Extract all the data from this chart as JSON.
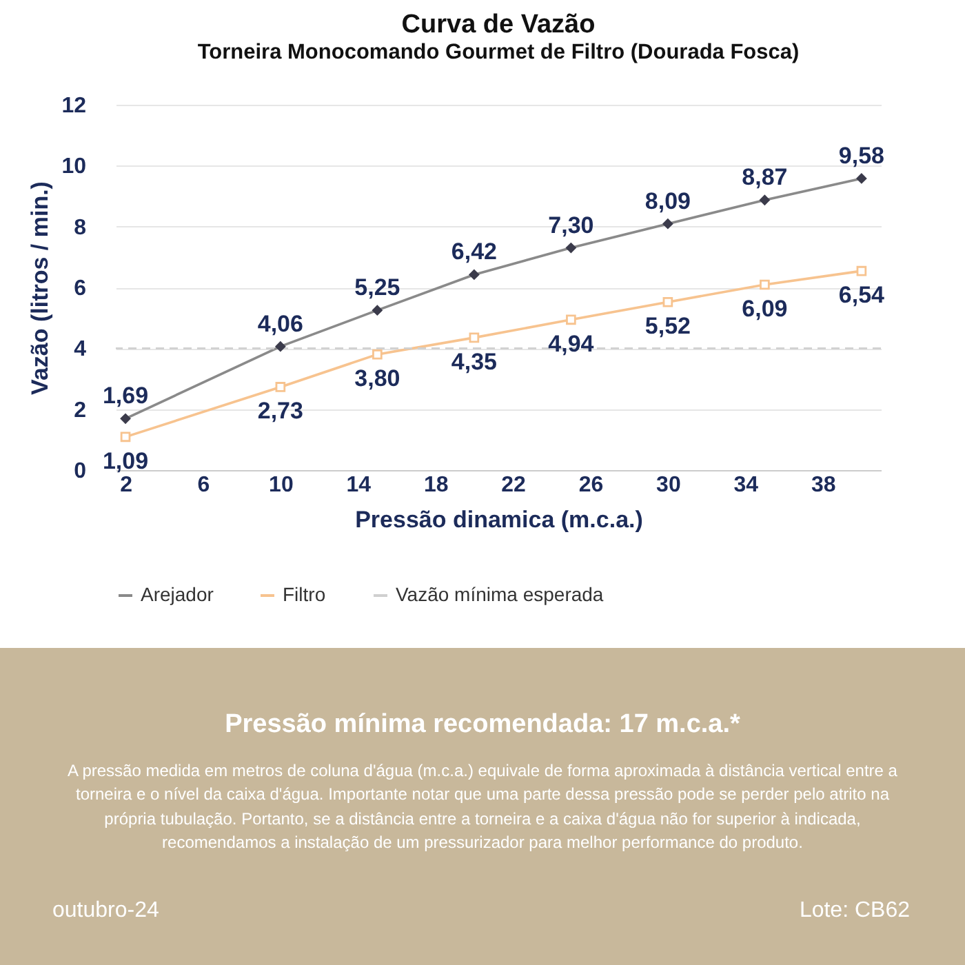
{
  "chart_data": {
    "type": "line",
    "title": "Curva de Vazão",
    "subtitle": "Torneira Monocomando Gourmet de Filtro (Dourada Fosca)",
    "xlabel": "Pressão dinamica (m.c.a.)",
    "ylabel": "Vazão (litros / min.)",
    "x": [
      2,
      10,
      15,
      20,
      25,
      30,
      35,
      40
    ],
    "series": [
      {
        "name": "Arejador",
        "color": "#8a8a8a",
        "marker": "diamond",
        "values": [
          1.69,
          4.06,
          5.25,
          6.42,
          7.3,
          8.09,
          8.87,
          9.58
        ],
        "value_labels": [
          "1,69",
          "4,06",
          "5,25",
          "6,42",
          "7,30",
          "8,09",
          "8,87",
          "9,58"
        ]
      },
      {
        "name": "Filtro",
        "color": "#f7c38f",
        "marker": "square",
        "values": [
          1.09,
          2.73,
          3.8,
          4.35,
          4.94,
          5.52,
          6.09,
          6.54
        ],
        "value_labels": [
          "1,09",
          "2,73",
          "3,80",
          "4,35",
          "4,94",
          "5,52",
          "6,09",
          "6,54"
        ]
      }
    ],
    "xlim": [
      1.5,
      41
    ],
    "xticks": [
      2,
      6,
      10,
      14,
      18,
      22,
      26,
      30,
      34,
      38
    ],
    "ylim": [
      0,
      12
    ],
    "yticks": [
      0,
      2,
      4,
      6,
      8,
      10,
      12
    ],
    "ref_lines": [
      {
        "axis": "y",
        "value": 4,
        "label": "Vazão mínima esperada",
        "color": "#d0d0d0",
        "line_style": "dashed"
      }
    ],
    "grid": "y",
    "legend": "bottom",
    "annotations": [
      "Pressão mínima recomendada: 17 m.c.a.*",
      "A pressão medida em metros de coluna d'água (m.c.a.) equivale de forma aproximada à distância vertical entre a torneira e o nível da caixa d'água. Importante notar que uma parte dessa pressão pode se perder pelo atrito na própria tubulação. Portanto, se a distância entre a torneira e a caixa d'água não for superior à indicada, recomendamos a instalação de um pressurizador para melhor performance do produto.",
      "outubro-24",
      "Lote: CB62"
    ]
  }
}
